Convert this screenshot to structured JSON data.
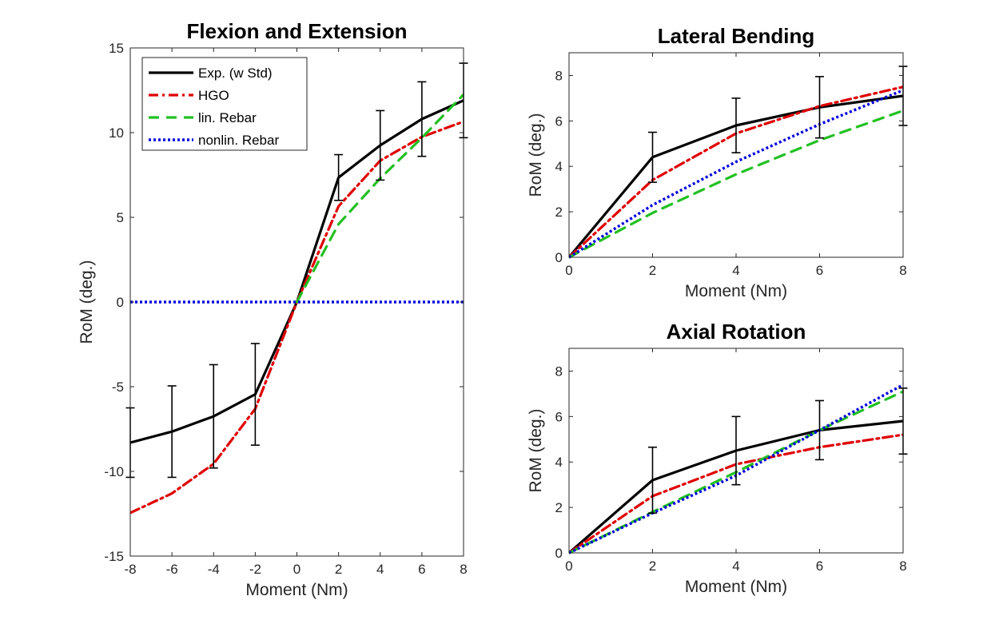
{
  "chart_data": [
    {
      "id": "flexion",
      "type": "line",
      "title": "Flexion and Extension",
      "xlabel": "Moment (Nm)",
      "ylabel": "RoM (deg.)",
      "xlim": [
        -8,
        8
      ],
      "ylim": [
        -15,
        15
      ],
      "xticks": [
        -8,
        -6,
        -4,
        -2,
        0,
        2,
        4,
        6,
        8
      ],
      "yticks": [
        -15,
        -10,
        -5,
        0,
        5,
        10,
        15
      ],
      "grid": false,
      "legend": "top-left",
      "series": [
        {
          "name": "Exp. (w Std)",
          "color": "#000000",
          "style": "solid",
          "x": [
            -8,
            -6,
            -4,
            -2,
            0,
            2,
            4,
            6,
            8
          ],
          "y": [
            -8.3,
            -7.65,
            -6.75,
            -5.45,
            0,
            7.35,
            9.25,
            10.8,
            11.9
          ],
          "err": [
            2.05,
            2.7,
            3.05,
            3.0,
            0,
            1.35,
            2.05,
            2.2,
            2.2
          ]
        },
        {
          "name": "HGO",
          "color": "#e00000",
          "style": "dashdot",
          "x": [
            -8,
            -6,
            -4,
            -2,
            0,
            2,
            4,
            6,
            8
          ],
          "y": [
            -12.45,
            -11.3,
            -9.55,
            -6.3,
            0,
            5.65,
            8.35,
            9.75,
            10.65
          ]
        },
        {
          "name": "lin. Rebar",
          "color": "#22c022",
          "style": "dashed",
          "x": [
            0,
            2,
            4,
            6,
            8
          ],
          "y": [
            0,
            4.6,
            7.3,
            9.7,
            12.25
          ]
        },
        {
          "name": "nonlin. Rebar",
          "color": "#0000dd",
          "style": "dotted",
          "x": [
            -8,
            8
          ],
          "y": [
            0,
            0
          ]
        }
      ]
    },
    {
      "id": "lateral",
      "type": "line",
      "title": "Lateral Bending",
      "xlabel": "Moment (Nm)",
      "ylabel": "RoM (deg.)",
      "xlim": [
        0,
        8
      ],
      "ylim": [
        0,
        9
      ],
      "xticks": [
        0,
        2,
        4,
        6,
        8
      ],
      "yticks": [
        0,
        2,
        4,
        6,
        8
      ],
      "grid": false,
      "series": [
        {
          "name": "Exp. (w Std)",
          "color": "#000000",
          "style": "solid",
          "x": [
            0,
            2,
            4,
            6,
            8
          ],
          "y": [
            0,
            4.4,
            5.8,
            6.6,
            7.1
          ],
          "err": [
            0,
            1.1,
            1.2,
            1.35,
            1.3
          ]
        },
        {
          "name": "HGO",
          "color": "#e00000",
          "style": "dashdot",
          "x": [
            0,
            2,
            4,
            6,
            8
          ],
          "y": [
            0,
            3.4,
            5.45,
            6.65,
            7.5
          ]
        },
        {
          "name": "lin. Rebar",
          "color": "#22c022",
          "style": "dashed",
          "x": [
            0,
            2,
            4,
            6,
            8
          ],
          "y": [
            0,
            1.95,
            3.65,
            5.15,
            6.45
          ]
        },
        {
          "name": "nonlin. Rebar",
          "color": "#0000dd",
          "style": "dotted",
          "x": [
            0,
            2,
            4,
            6,
            8
          ],
          "y": [
            0,
            2.3,
            4.2,
            5.85,
            7.35
          ]
        }
      ]
    },
    {
      "id": "axial",
      "type": "line",
      "title": "Axial Rotation",
      "xlabel": "Moment (Nm)",
      "ylabel": "RoM (deg.)",
      "xlim": [
        0,
        8
      ],
      "ylim": [
        0,
        9
      ],
      "xticks": [
        0,
        2,
        4,
        6,
        8
      ],
      "yticks": [
        0,
        2,
        4,
        6,
        8
      ],
      "grid": false,
      "series": [
        {
          "name": "Exp. (w Std)",
          "color": "#000000",
          "style": "solid",
          "x": [
            0,
            2,
            4,
            6,
            8
          ],
          "y": [
            0,
            3.2,
            4.5,
            5.4,
            5.8
          ],
          "err": [
            0,
            1.45,
            1.5,
            1.3,
            1.45
          ]
        },
        {
          "name": "HGO",
          "color": "#e00000",
          "style": "dashdot",
          "x": [
            0,
            2,
            4,
            6,
            8
          ],
          "y": [
            0,
            2.5,
            3.9,
            4.65,
            5.2
          ]
        },
        {
          "name": "lin. Rebar",
          "color": "#22c022",
          "style": "dashed",
          "x": [
            0,
            2,
            4,
            6,
            8
          ],
          "y": [
            0,
            1.8,
            3.55,
            5.4,
            7.1
          ]
        },
        {
          "name": "nonlin. Rebar",
          "color": "#0000dd",
          "style": "dotted",
          "x": [
            0,
            2,
            4,
            6,
            8
          ],
          "y": [
            0,
            1.75,
            3.4,
            5.4,
            7.4
          ]
        }
      ]
    }
  ]
}
